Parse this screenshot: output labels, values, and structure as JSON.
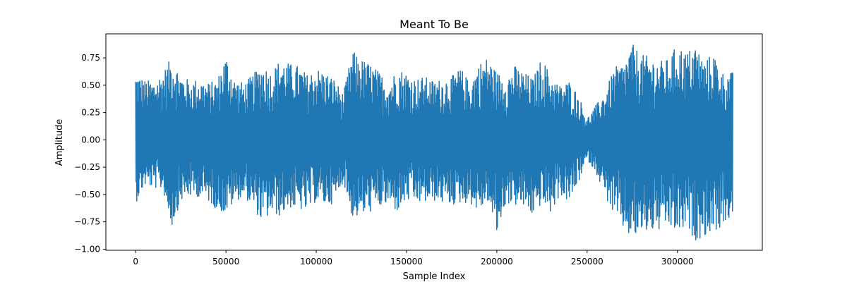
{
  "chart_data": {
    "type": "line",
    "title": "Meant To Be",
    "xlabel": "Sample Index",
    "ylabel": "Amplitude",
    "xlim": [
      -16500,
      347000
    ],
    "ylim": [
      -1.01,
      0.97
    ],
    "x_ticks": [
      0,
      50000,
      100000,
      150000,
      200000,
      250000,
      300000
    ],
    "y_ticks": [
      -1.0,
      -0.75,
      -0.5,
      -0.25,
      0.0,
      0.25,
      0.5,
      0.75
    ],
    "grid": false,
    "series": [
      {
        "color": "#1f77b4",
        "sample_count": 330750,
        "x_step": 5000,
        "envelope_x": [
          0,
          5000,
          10000,
          15000,
          20000,
          25000,
          30000,
          35000,
          40000,
          45000,
          50000,
          55000,
          60000,
          65000,
          70000,
          75000,
          80000,
          85000,
          90000,
          95000,
          100000,
          105000,
          110000,
          115000,
          120000,
          125000,
          130000,
          135000,
          140000,
          145000,
          150000,
          155000,
          160000,
          165000,
          170000,
          175000,
          180000,
          185000,
          190000,
          195000,
          200000,
          205000,
          210000,
          215000,
          220000,
          225000,
          230000,
          235000,
          240000,
          245000,
          250000,
          255000,
          260000,
          265000,
          270000,
          275000,
          280000,
          285000,
          290000,
          295000,
          300000,
          305000,
          310000,
          315000,
          320000,
          325000,
          330000
        ],
        "envelope_max": [
          0.62,
          0.55,
          0.54,
          0.62,
          0.76,
          0.6,
          0.54,
          0.56,
          0.52,
          0.55,
          0.78,
          0.55,
          0.52,
          0.6,
          0.7,
          0.62,
          0.74,
          0.7,
          0.68,
          0.6,
          0.66,
          0.62,
          0.56,
          0.42,
          0.82,
          0.74,
          0.7,
          0.62,
          0.52,
          0.66,
          0.62,
          0.56,
          0.58,
          0.54,
          0.56,
          0.58,
          0.66,
          0.52,
          0.7,
          0.76,
          0.62,
          0.58,
          0.68,
          0.62,
          0.56,
          0.76,
          0.58,
          0.5,
          0.54,
          0.42,
          0.2,
          0.32,
          0.44,
          0.66,
          0.7,
          0.88,
          0.78,
          0.76,
          0.72,
          0.74,
          0.88,
          0.8,
          0.88,
          0.72,
          0.8,
          0.62,
          0.62
        ],
        "envelope_min": [
          -0.58,
          -0.42,
          -0.44,
          -0.46,
          -0.8,
          -0.56,
          -0.52,
          -0.52,
          -0.56,
          -0.64,
          -0.68,
          -0.56,
          -0.52,
          -0.62,
          -0.76,
          -0.68,
          -0.7,
          -0.62,
          -0.64,
          -0.66,
          -0.56,
          -0.6,
          -0.58,
          -0.38,
          -0.72,
          -0.7,
          -0.66,
          -0.62,
          -0.6,
          -0.66,
          -0.56,
          -0.58,
          -0.58,
          -0.56,
          -0.58,
          -0.6,
          -0.58,
          -0.58,
          -0.66,
          -0.56,
          -0.88,
          -0.58,
          -0.6,
          -0.62,
          -0.7,
          -0.58,
          -0.68,
          -0.5,
          -0.58,
          -0.4,
          -0.18,
          -0.3,
          -0.52,
          -0.7,
          -0.82,
          -0.92,
          -0.86,
          -0.84,
          -0.84,
          -0.8,
          -0.86,
          -0.82,
          -0.92,
          -0.88,
          -0.84,
          -0.8,
          -0.7
        ]
      }
    ]
  }
}
